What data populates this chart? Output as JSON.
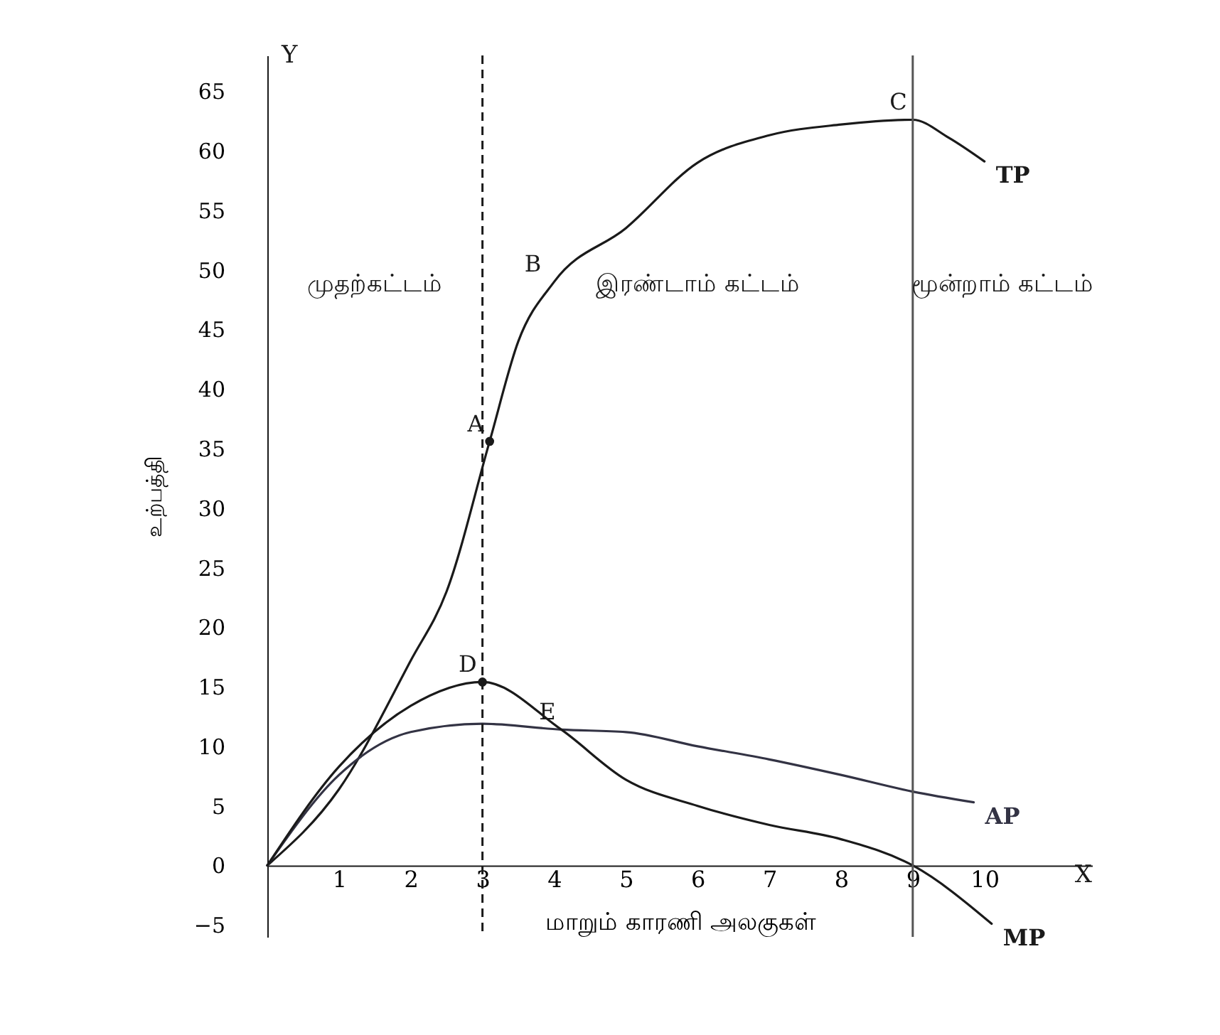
{
  "chart_data": {
    "type": "line",
    "xlabel": "மாறும் காரணி அலகுகள்",
    "ylabel": "உற்பத்தி",
    "xlim": [
      0,
      11.5
    ],
    "xticks": [
      1,
      2,
      3,
      4,
      5,
      6,
      7,
      8,
      9,
      10
    ],
    "ylim": [
      -6,
      68
    ],
    "yticks": [
      -5,
      0,
      5,
      10,
      15,
      20,
      25,
      30,
      35,
      40,
      45,
      50,
      55,
      60,
      65
    ],
    "grid": false,
    "marker": "none",
    "line_style": "solid",
    "series": [
      {
        "name": "TP",
        "color": "#1a1a1a",
        "x": [
          0,
          1,
          2,
          2.5,
          3.1,
          3.5,
          4,
          5,
          6,
          7,
          8,
          9,
          9.5,
          10
        ],
        "values": [
          0,
          6.4,
          17.2,
          23,
          35.6,
          44,
          49,
          53.5,
          59,
          61.3,
          62.2,
          62.6,
          61.1,
          59.1
        ]
      },
      {
        "name": "AP",
        "color": "#333344",
        "x": [
          0,
          1,
          2,
          3,
          4.1,
          5,
          6,
          7,
          8,
          9,
          9.85
        ],
        "values": [
          0,
          7.6,
          11.2,
          11.9,
          11.4,
          11.2,
          10,
          8.9,
          7.6,
          6.2,
          5.3
        ]
      },
      {
        "name": "MP",
        "color": "#1a1a1a",
        "x": [
          0,
          1,
          2,
          3,
          4.1,
          5,
          6,
          7,
          8,
          9,
          10.1
        ],
        "values": [
          0,
          8.3,
          13.4,
          15.4,
          11.4,
          7.2,
          5,
          3.4,
          2.2,
          0,
          -4.9
        ]
      },
      {
        "type": "scatter",
        "marker": "circle",
        "color": "#1a1a1a",
        "x": [
          3.1,
          3
        ],
        "values": [
          35.6,
          15.4
        ]
      }
    ],
    "ref_lines": [
      {
        "axis": "x",
        "value": 3,
        "line_style": "dashed",
        "color": "#1a1a1a"
      },
      {
        "axis": "x",
        "value": 9,
        "line_style": "solid",
        "color": "#555555"
      }
    ],
    "annotations": [
      {
        "text": "A",
        "x": 3.1,
        "y": 35.6
      },
      {
        "text": "B",
        "x": 3.9,
        "y": 49
      },
      {
        "text": "C",
        "x": 9,
        "y": 62.6
      },
      {
        "text": "D",
        "x": 3,
        "y": 15.4
      },
      {
        "text": "E",
        "x": 4.1,
        "y": 11.4
      },
      "முதற்கட்டம்",
      "இரண்டாம் கட்டம்",
      "மூன்றாம் கட்டம்",
      "X",
      "Y"
    ]
  }
}
